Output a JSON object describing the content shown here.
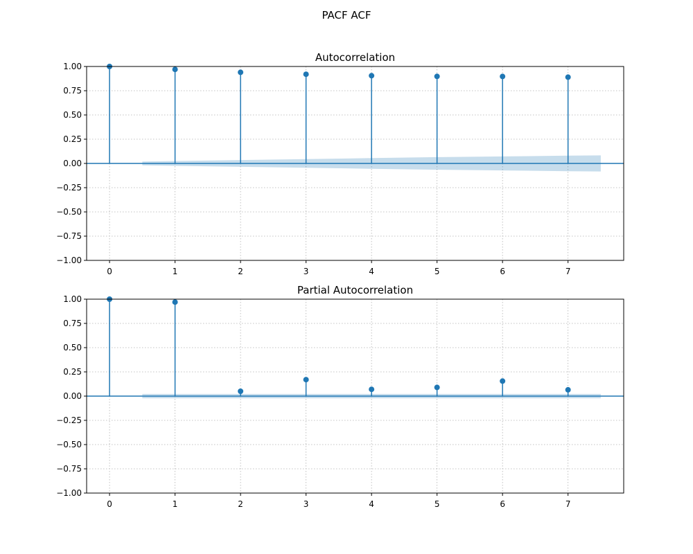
{
  "suptitle": "PACF ACF",
  "colors": {
    "stem": "#1f77b4",
    "band": "#1f77b4",
    "grid": "#b0b0b0"
  },
  "chart_data": [
    {
      "type": "stem",
      "title": "Autocorrelation",
      "xlabel": "",
      "ylabel": "",
      "xlim": [
        -0.35,
        7.85
      ],
      "ylim": [
        -1.0,
        1.0
      ],
      "xticks": [
        0,
        1,
        2,
        3,
        4,
        5,
        6,
        7
      ],
      "yticks": [
        1.0,
        0.75,
        0.5,
        0.25,
        0.0,
        -0.25,
        -0.5,
        -0.75,
        -1.0
      ],
      "ytick_labels": [
        "1.00",
        "0.75",
        "0.50",
        "0.25",
        "0.00",
        "−0.25",
        "−0.50",
        "−0.75",
        "−1.00"
      ],
      "grid": true,
      "lags": [
        0,
        1,
        2,
        3,
        4,
        5,
        6,
        7
      ],
      "values": [
        1.0,
        0.97,
        0.94,
        0.92,
        0.905,
        0.898,
        0.897,
        0.89
      ],
      "confidence_band": {
        "x": [
          0.5,
          1,
          2,
          3,
          4,
          5,
          6,
          7,
          7.5
        ],
        "upper": [
          0.02,
          0.025,
          0.035,
          0.045,
          0.055,
          0.065,
          0.072,
          0.08,
          0.083
        ],
        "lower": [
          -0.02,
          -0.025,
          -0.035,
          -0.045,
          -0.055,
          -0.065,
          -0.072,
          -0.08,
          -0.083
        ]
      }
    },
    {
      "type": "stem",
      "title": "Partial Autocorrelation",
      "xlabel": "",
      "ylabel": "",
      "xlim": [
        -0.35,
        7.85
      ],
      "ylim": [
        -1.0,
        1.0
      ],
      "xticks": [
        0,
        1,
        2,
        3,
        4,
        5,
        6,
        7
      ],
      "yticks": [
        1.0,
        0.75,
        0.5,
        0.25,
        0.0,
        -0.25,
        -0.5,
        -0.75,
        -1.0
      ],
      "ytick_labels": [
        "1.00",
        "0.75",
        "0.50",
        "0.25",
        "0.00",
        "−0.25",
        "−0.50",
        "−0.75",
        "−1.00"
      ],
      "grid": true,
      "lags": [
        0,
        1,
        2,
        3,
        4,
        5,
        6,
        7
      ],
      "values": [
        1.0,
        0.97,
        0.05,
        0.17,
        0.07,
        0.09,
        0.155,
        0.065
      ],
      "confidence_band": {
        "x": [
          0.5,
          7.5
        ],
        "upper": [
          0.022,
          0.022
        ],
        "lower": [
          -0.022,
          -0.022
        ]
      }
    }
  ]
}
